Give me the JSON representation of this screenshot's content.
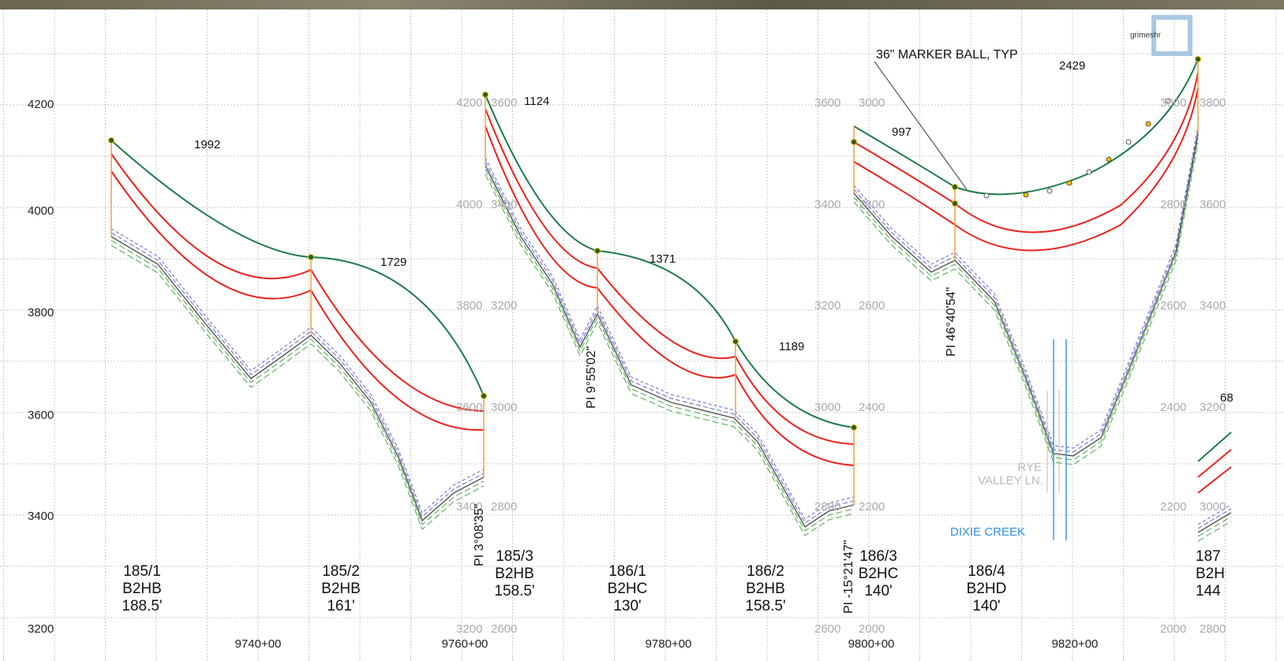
{
  "logo": "grimeshr",
  "left_axis": [
    "4200",
    "4000",
    "3800",
    "3600",
    "3400",
    "3200"
  ],
  "bottom_axis": [
    "9740+00",
    "9760+00",
    "9780+00",
    "9800+00",
    "9820+00"
  ],
  "span_lengths": [
    "1992",
    "1729",
    "1124",
    "1371",
    "1189",
    "997",
    "2429",
    "68"
  ],
  "structures": [
    {
      "number": "185/1",
      "type": "B2HB",
      "height": "188.5'"
    },
    {
      "number": "185/2",
      "type": "B2HB",
      "height": "161'"
    },
    {
      "number": "185/3",
      "type": "B2HB",
      "height": "158.5'"
    },
    {
      "number": "186/1",
      "type": "B2HC",
      "height": "130'"
    },
    {
      "number": "186/2",
      "type": "B2HB",
      "height": "158.5'"
    },
    {
      "number": "186/3",
      "type": "B2HC",
      "height": "140'"
    },
    {
      "number": "186/4",
      "type": "B2HD",
      "height": "140'"
    },
    {
      "number": "187",
      "type": "B2H",
      "height": "144"
    }
  ],
  "pi_labels": [
    "PI 3°08'35\"",
    "PI 9°55'02\"",
    "PI -15°21'47\"",
    "PI 46°40'54\""
  ],
  "secondary_axes": [
    {
      "labels": [
        [
          "4200",
          "3600"
        ],
        [
          "4000",
          "3400"
        ],
        [
          "3800",
          "3200"
        ],
        [
          "3600",
          "3000"
        ],
        [
          "3400",
          "2800"
        ],
        [
          "3200",
          "2600"
        ]
      ]
    },
    {
      "labels": [
        [
          "3600",
          "3000"
        ],
        [
          "3400",
          "2800"
        ],
        [
          "3200",
          "2600"
        ],
        [
          "3000",
          "2400"
        ],
        [
          "2800",
          "2200"
        ],
        [
          "2600",
          "2000"
        ]
      ]
    },
    {
      "labels": [
        [
          "3000",
          "3800"
        ],
        [
          "2800",
          "3600"
        ],
        [
          "2600",
          "3400"
        ],
        [
          "2400",
          "3200"
        ],
        [
          "2200",
          "3000"
        ],
        [
          "2000",
          "2800"
        ]
      ]
    }
  ],
  "callouts": {
    "marker_ball": "36\" MARKER BALL, TYP",
    "road": [
      "RYE",
      "VALLEY LN."
    ],
    "creek": "DIXIE CREEK"
  }
}
